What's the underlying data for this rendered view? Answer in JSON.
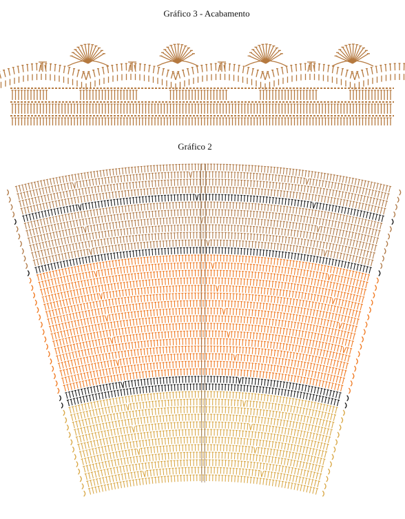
{
  "header": {
    "title": "Gráfico 3 - Acabamento"
  },
  "chart2": {
    "title": "Gráfico 2"
  }
}
